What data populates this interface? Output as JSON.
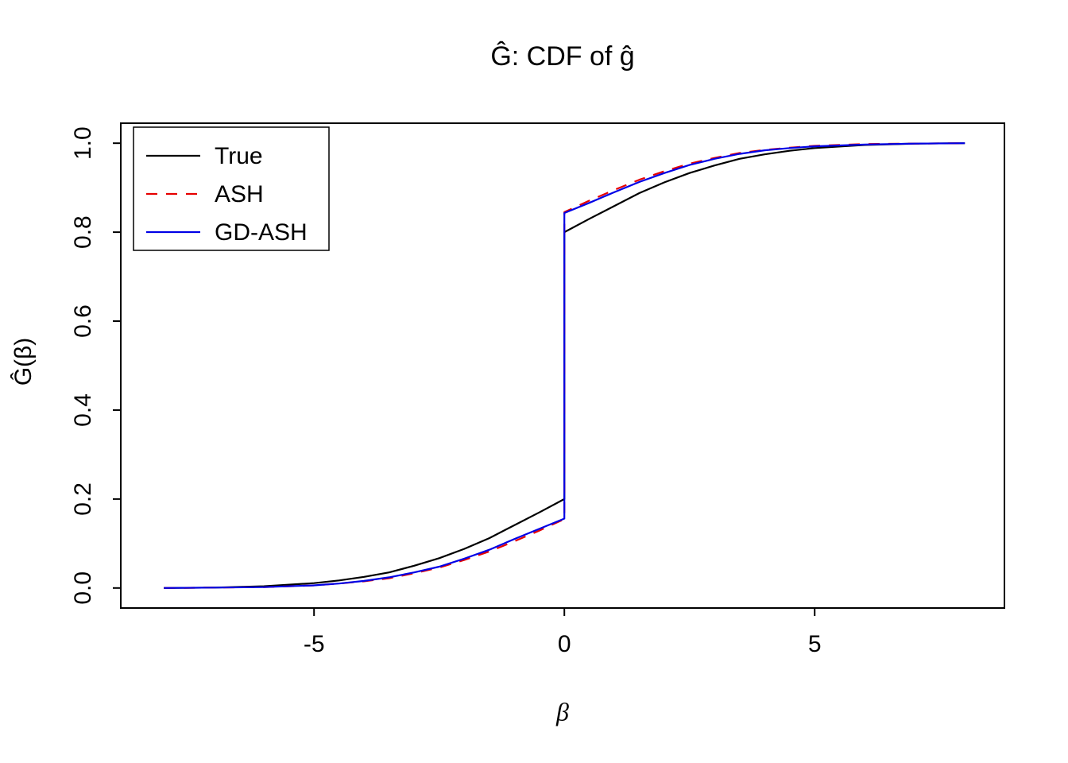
{
  "chart_data": {
    "type": "line",
    "title": "Ĝ: CDF of ĝ",
    "xlabel": "β",
    "ylabel": "Ĝ(β)",
    "xlim": [
      -8.86,
      8.79
    ],
    "ylim": [
      -0.045,
      1.045
    ],
    "x_ticks": [
      -5,
      0,
      5
    ],
    "x_tick_labels": [
      "-5",
      "0",
      "5"
    ],
    "y_ticks": [
      0.0,
      0.2,
      0.4,
      0.6,
      0.8,
      1.0
    ],
    "y_tick_labels": [
      "0.0",
      "0.2",
      "0.4",
      "0.6",
      "0.8",
      "1.0"
    ],
    "grid": false,
    "legend": {
      "position": "top-left",
      "entries": [
        {
          "label": "True",
          "color": "#000000",
          "dash": "solid"
        },
        {
          "label": "ASH",
          "color": "#e60000",
          "dash": "dashed"
        },
        {
          "label": "GD-ASH",
          "color": "#0000e6",
          "dash": "solid"
        }
      ]
    },
    "series": [
      {
        "name": "True",
        "color": "#000000",
        "dash": "solid",
        "points": [
          [
            -8,
            0.0
          ],
          [
            -7,
            0.001
          ],
          [
            -6,
            0.004
          ],
          [
            -5,
            0.011
          ],
          [
            -4.5,
            0.017
          ],
          [
            -4,
            0.025
          ],
          [
            -3.5,
            0.035
          ],
          [
            -3,
            0.05
          ],
          [
            -2.5,
            0.067
          ],
          [
            -2,
            0.088
          ],
          [
            -1.5,
            0.112
          ],
          [
            -1,
            0.141
          ],
          [
            -0.5,
            0.17
          ],
          [
            0,
            0.2
          ],
          [
            0,
            0.8
          ],
          [
            0.5,
            0.83
          ],
          [
            1,
            0.859
          ],
          [
            1.5,
            0.888
          ],
          [
            2,
            0.912
          ],
          [
            2.5,
            0.933
          ],
          [
            3,
            0.95
          ],
          [
            3.5,
            0.965
          ],
          [
            4,
            0.975
          ],
          [
            4.5,
            0.983
          ],
          [
            5,
            0.989
          ],
          [
            6,
            0.996
          ],
          [
            7,
            0.999
          ],
          [
            8,
            1.0
          ]
        ]
      },
      {
        "name": "ASH",
        "color": "#e60000",
        "dash": "dashed",
        "points": [
          [
            -8,
            0.0
          ],
          [
            -7,
            0.001
          ],
          [
            -6,
            0.002
          ],
          [
            -5,
            0.006
          ],
          [
            -4.5,
            0.01
          ],
          [
            -4,
            0.015
          ],
          [
            -3.5,
            0.022
          ],
          [
            -3,
            0.033
          ],
          [
            -2.5,
            0.046
          ],
          [
            -2,
            0.063
          ],
          [
            -1.5,
            0.082
          ],
          [
            -1,
            0.105
          ],
          [
            -0.5,
            0.129
          ],
          [
            0,
            0.155
          ],
          [
            0,
            0.845
          ],
          [
            0.5,
            0.871
          ],
          [
            1,
            0.895
          ],
          [
            1.5,
            0.918
          ],
          [
            2,
            0.937
          ],
          [
            2.5,
            0.954
          ],
          [
            3,
            0.967
          ],
          [
            3.5,
            0.978
          ],
          [
            4,
            0.985
          ],
          [
            4.5,
            0.99
          ],
          [
            5,
            0.994
          ],
          [
            6,
            0.998
          ],
          [
            7,
            0.999
          ],
          [
            8,
            1.0
          ]
        ]
      },
      {
        "name": "GD-ASH",
        "color": "#0000e6",
        "dash": "solid",
        "points": [
          [
            -8,
            0.0
          ],
          [
            -7,
            0.001
          ],
          [
            -6,
            0.002
          ],
          [
            -5,
            0.006
          ],
          [
            -4.5,
            0.01
          ],
          [
            -4,
            0.016
          ],
          [
            -3.5,
            0.024
          ],
          [
            -3,
            0.035
          ],
          [
            -2.5,
            0.048
          ],
          [
            -2,
            0.066
          ],
          [
            -1.5,
            0.086
          ],
          [
            -1,
            0.11
          ],
          [
            -0.5,
            0.133
          ],
          [
            0,
            0.156
          ],
          [
            0,
            0.843
          ],
          [
            0.5,
            0.866
          ],
          [
            1,
            0.89
          ],
          [
            1.5,
            0.913
          ],
          [
            2,
            0.933
          ],
          [
            2.5,
            0.951
          ],
          [
            3,
            0.965
          ],
          [
            3.5,
            0.976
          ],
          [
            4,
            0.984
          ],
          [
            4.5,
            0.989
          ],
          [
            5,
            0.993
          ],
          [
            6,
            0.997
          ],
          [
            7,
            0.999
          ],
          [
            8,
            1.0
          ]
        ]
      }
    ]
  }
}
